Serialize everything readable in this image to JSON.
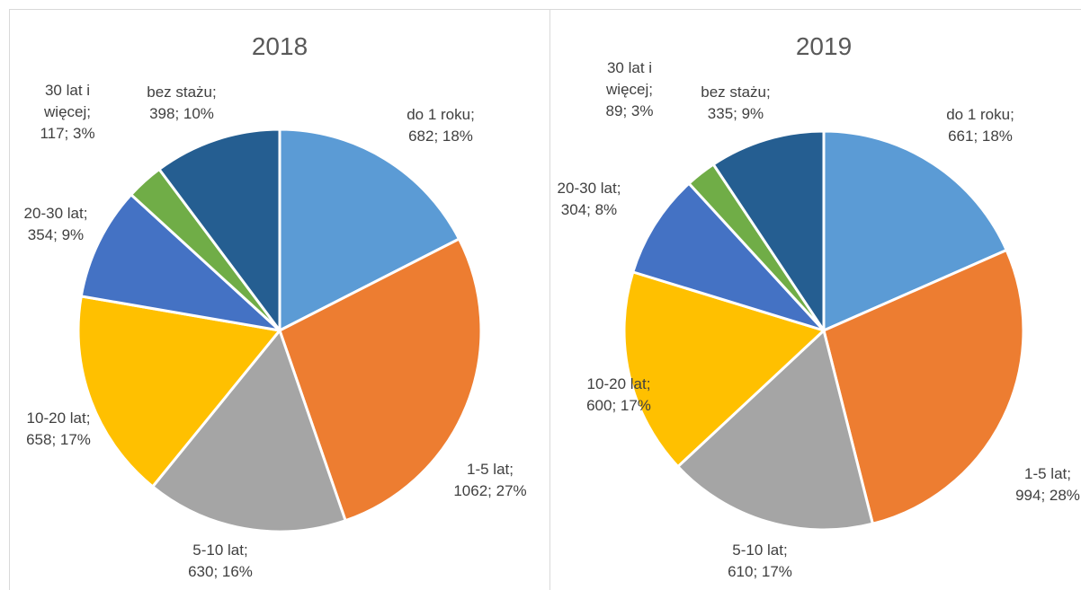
{
  "chart_data": [
    {
      "type": "pie",
      "title": "2018",
      "categories": [
        "do 1 roku;",
        "1-5 lat;",
        "5-10 lat;",
        "10-20 lat;",
        "20-30 lat;",
        "30 lat i więcej;",
        "bez stażu;"
      ],
      "values": [
        682,
        1062,
        630,
        658,
        354,
        117,
        398
      ],
      "value_labels": [
        "682; 18%",
        "1062; 27%",
        "630; 16%",
        "658; 17%",
        "354; 9%",
        "117; 3%",
        "398; 10%"
      ],
      "colors": [
        "#5b9bd5",
        "#ed7d31",
        "#a5a5a5",
        "#ffc000",
        "#4472c4",
        "#70ad47",
        "#255e91"
      ]
    },
    {
      "type": "pie",
      "title": "2019",
      "categories": [
        "do 1 roku;",
        "1-5 lat;",
        "5-10 lat;",
        "10-20 lat;",
        "20-30 lat;",
        "30 lat i więcej;",
        "bez stażu;"
      ],
      "values": [
        661,
        994,
        610,
        600,
        304,
        89,
        335
      ],
      "value_labels": [
        "661; 18%",
        "994; 28%",
        "610; 17%",
        "600; 17%",
        "304; 8%",
        "89; 3%",
        "335; 9%"
      ],
      "colors": [
        "#5b9bd5",
        "#ed7d31",
        "#a5a5a5",
        "#ffc000",
        "#4472c4",
        "#70ad47",
        "#255e91"
      ]
    }
  ]
}
